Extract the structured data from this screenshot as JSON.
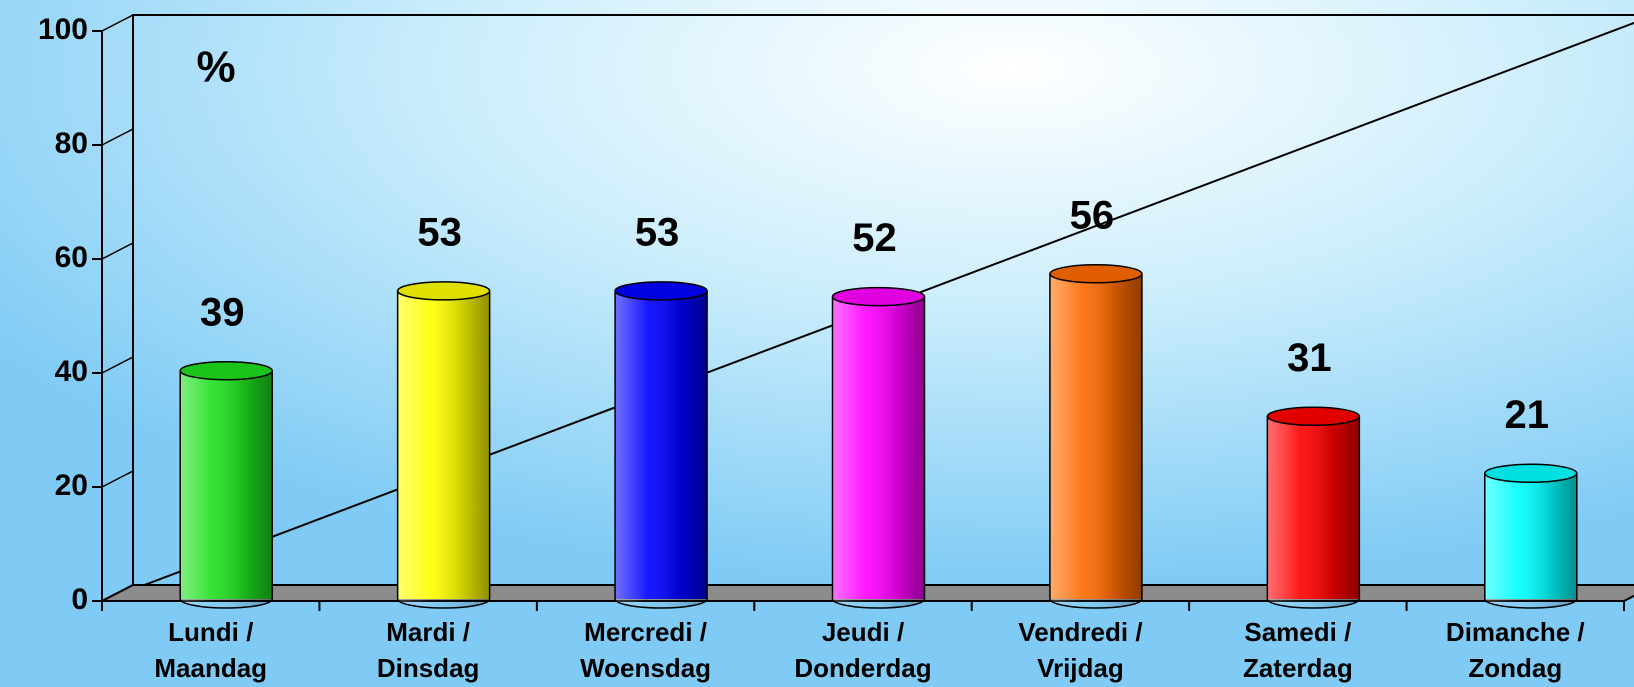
{
  "chart_data": {
    "type": "bar",
    "y_label": "%",
    "categories": [
      [
        "Lundi /",
        "Maandag"
      ],
      [
        "Mardi /",
        "Dinsdag"
      ],
      [
        "Mercredi /",
        "Woensdag"
      ],
      [
        "Jeudi /",
        "Donderdag"
      ],
      [
        "Vendredi /",
        "Vrijdag"
      ],
      [
        "Samedi /",
        "Zaterdag"
      ],
      [
        "Dimanche /",
        "Zondag"
      ]
    ],
    "values": [
      39,
      53,
      53,
      52,
      56,
      31,
      21
    ],
    "colors": [
      "#1ee01e",
      "#ffff00",
      "#0000ff",
      "#ff00ff",
      "#ff6a00",
      "#ff0000",
      "#00ffff"
    ],
    "ylim": [
      0,
      100
    ],
    "yticks": [
      0,
      20,
      40,
      60,
      80,
      100
    ]
  }
}
